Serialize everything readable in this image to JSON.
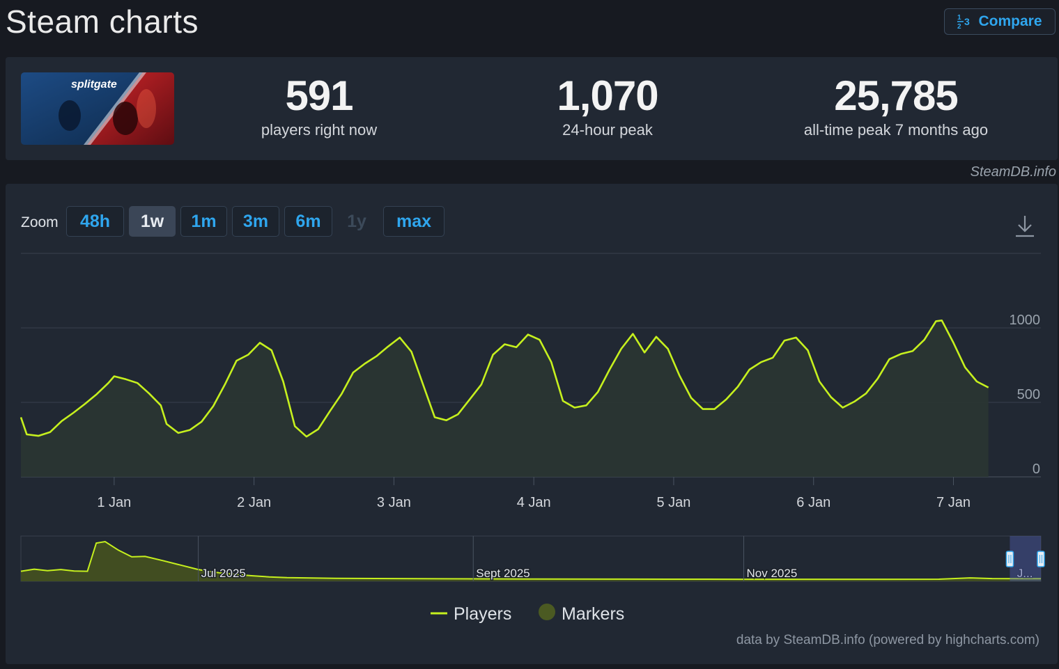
{
  "header": {
    "title": "Steam charts",
    "compare_label": "Compare",
    "compare_icon": "one-two-three-icon"
  },
  "game": {
    "logo_text": "splitgate"
  },
  "stats": [
    {
      "value": "591",
      "label": "players right now"
    },
    {
      "value": "1,070",
      "label": "24-hour peak"
    },
    {
      "value": "25,785",
      "label": "all-time peak 7 months ago"
    }
  ],
  "credit_top": "SteamDB.info",
  "zoom": {
    "label": "Zoom",
    "options": [
      {
        "label": "48h",
        "state": "normal"
      },
      {
        "label": "1w",
        "state": "active"
      },
      {
        "label": "1m",
        "state": "normal"
      },
      {
        "label": "3m",
        "state": "normal"
      },
      {
        "label": "6m",
        "state": "normal"
      },
      {
        "label": "1y",
        "state": "disabled"
      },
      {
        "label": "max",
        "state": "normal"
      }
    ]
  },
  "legend": {
    "players_label": "Players",
    "markers_label": "Markers"
  },
  "credit_bottom": "data by SteamDB.info (powered by highcharts.com)",
  "colors": {
    "line": "#c6f01e",
    "accent": "#2fa6ee",
    "marker": "#4b5a22"
  },
  "chart_data": {
    "type": "line",
    "x_start": "2025-12-31 08:00",
    "x_end": "2026-01-07 15:00",
    "xticks": [
      "1 Jan",
      "2 Jan",
      "3 Jan",
      "4 Jan",
      "5 Jan",
      "6 Jan",
      "7 Jan"
    ],
    "yticks": [
      0,
      500,
      1000
    ],
    "ylim": [
      0,
      1500
    ],
    "grid": true,
    "legend_position": "bottom-center",
    "series": [
      {
        "name": "Players",
        "points": [
          [
            "2025-12-31 08:00",
            400
          ],
          [
            "2025-12-31 09:00",
            285
          ],
          [
            "2025-12-31 11:00",
            275
          ],
          [
            "2025-12-31 13:00",
            300
          ],
          [
            "2025-12-31 15:00",
            375
          ],
          [
            "2025-12-31 17:00",
            430
          ],
          [
            "2025-12-31 19:00",
            490
          ],
          [
            "2025-12-31 21:00",
            555
          ],
          [
            "2025-12-31 23:00",
            630
          ],
          [
            "2026-01-01 00:00",
            675
          ],
          [
            "2026-01-01 02:00",
            655
          ],
          [
            "2026-01-01 04:00",
            630
          ],
          [
            "2026-01-01 06:00",
            560
          ],
          [
            "2026-01-01 08:00",
            480
          ],
          [
            "2026-01-01 09:00",
            355
          ],
          [
            "2026-01-01 11:00",
            295
          ],
          [
            "2026-01-01 13:00",
            315
          ],
          [
            "2026-01-01 15:00",
            370
          ],
          [
            "2026-01-01 17:00",
            475
          ],
          [
            "2026-01-01 19:00",
            620
          ],
          [
            "2026-01-01 21:00",
            780
          ],
          [
            "2026-01-01 23:00",
            820
          ],
          [
            "2026-01-02 01:00",
            900
          ],
          [
            "2026-01-02 03:00",
            850
          ],
          [
            "2026-01-02 05:00",
            640
          ],
          [
            "2026-01-02 07:00",
            340
          ],
          [
            "2026-01-02 09:00",
            270
          ],
          [
            "2026-01-02 11:00",
            320
          ],
          [
            "2026-01-02 13:00",
            440
          ],
          [
            "2026-01-02 15:00",
            555
          ],
          [
            "2026-01-02 17:00",
            700
          ],
          [
            "2026-01-02 19:00",
            760
          ],
          [
            "2026-01-02 21:00",
            810
          ],
          [
            "2026-01-02 23:00",
            875
          ],
          [
            "2026-01-03 01:00",
            935
          ],
          [
            "2026-01-03 03:00",
            840
          ],
          [
            "2026-01-03 05:00",
            620
          ],
          [
            "2026-01-03 07:00",
            400
          ],
          [
            "2026-01-03 09:00",
            380
          ],
          [
            "2026-01-03 11:00",
            420
          ],
          [
            "2026-01-03 13:00",
            520
          ],
          [
            "2026-01-03 15:00",
            620
          ],
          [
            "2026-01-03 17:00",
            820
          ],
          [
            "2026-01-03 19:00",
            890
          ],
          [
            "2026-01-03 21:00",
            870
          ],
          [
            "2026-01-03 23:00",
            955
          ],
          [
            "2026-01-04 01:00",
            920
          ],
          [
            "2026-01-04 03:00",
            770
          ],
          [
            "2026-01-04 05:00",
            510
          ],
          [
            "2026-01-04 07:00",
            465
          ],
          [
            "2026-01-04 09:00",
            480
          ],
          [
            "2026-01-04 11:00",
            570
          ],
          [
            "2026-01-04 13:00",
            720
          ],
          [
            "2026-01-04 15:00",
            860
          ],
          [
            "2026-01-04 17:00",
            960
          ],
          [
            "2026-01-04 19:00",
            835
          ],
          [
            "2026-01-04 21:00",
            940
          ],
          [
            "2026-01-04 23:00",
            860
          ],
          [
            "2026-01-05 01:00",
            680
          ],
          [
            "2026-01-05 03:00",
            530
          ],
          [
            "2026-01-05 05:00",
            455
          ],
          [
            "2026-01-05 07:00",
            455
          ],
          [
            "2026-01-05 09:00",
            520
          ],
          [
            "2026-01-05 11:00",
            605
          ],
          [
            "2026-01-05 13:00",
            720
          ],
          [
            "2026-01-05 15:00",
            770
          ],
          [
            "2026-01-05 17:00",
            800
          ],
          [
            "2026-01-05 19:00",
            915
          ],
          [
            "2026-01-05 21:00",
            935
          ],
          [
            "2026-01-05 23:00",
            850
          ],
          [
            "2026-01-06 01:00",
            640
          ],
          [
            "2026-01-06 03:00",
            535
          ],
          [
            "2026-01-06 05:00",
            465
          ],
          [
            "2026-01-06 07:00",
            505
          ],
          [
            "2026-01-06 09:00",
            560
          ],
          [
            "2026-01-06 11:00",
            660
          ],
          [
            "2026-01-06 13:00",
            790
          ],
          [
            "2026-01-06 15:00",
            825
          ],
          [
            "2026-01-06 17:00",
            845
          ],
          [
            "2026-01-06 19:00",
            920
          ],
          [
            "2026-01-06 21:00",
            1045
          ],
          [
            "2026-01-06 22:00",
            1050
          ],
          [
            "2026-01-07 00:00",
            900
          ],
          [
            "2026-01-07 02:00",
            735
          ],
          [
            "2026-01-07 04:00",
            640
          ],
          [
            "2026-01-07 06:00",
            600
          ]
        ]
      }
    ],
    "navigator": {
      "labels": [
        "Jul 2025",
        "Sept 2025",
        "Nov 2025",
        "J..."
      ],
      "ylim": [
        0,
        25785
      ],
      "points": [
        [
          "2025-05-22",
          5800
        ],
        [
          "2025-05-25",
          7200
        ],
        [
          "2025-05-28",
          6200
        ],
        [
          "2025-05-31",
          7000
        ],
        [
          "2025-06-03",
          6000
        ],
        [
          "2025-06-06",
          5800
        ],
        [
          "2025-06-08",
          24800
        ],
        [
          "2025-06-10",
          25785
        ],
        [
          "2025-06-13",
          20000
        ],
        [
          "2025-06-16",
          15500
        ],
        [
          "2025-06-19",
          15800
        ],
        [
          "2025-06-23",
          13000
        ],
        [
          "2025-06-27",
          10000
        ],
        [
          "2025-07-01",
          7000
        ],
        [
          "2025-07-05",
          5000
        ],
        [
          "2025-07-09",
          3800
        ],
        [
          "2025-07-13",
          2800
        ],
        [
          "2025-07-17",
          2000
        ],
        [
          "2025-07-21",
          1500
        ],
        [
          "2025-08-01",
          1100
        ],
        [
          "2025-08-15",
          900
        ],
        [
          "2025-09-01",
          700
        ],
        [
          "2025-09-15",
          550
        ],
        [
          "2025-10-01",
          500
        ],
        [
          "2025-10-15",
          450
        ],
        [
          "2025-11-01",
          420
        ],
        [
          "2025-11-15",
          400
        ],
        [
          "2025-12-01",
          420
        ],
        [
          "2025-12-15",
          450
        ],
        [
          "2025-12-22",
          1350
        ],
        [
          "2025-12-27",
          900
        ],
        [
          "2026-01-03",
          850
        ],
        [
          "2026-01-07",
          800
        ]
      ],
      "selected_range": [
        "2025-12-31",
        "2026-01-07"
      ]
    }
  }
}
